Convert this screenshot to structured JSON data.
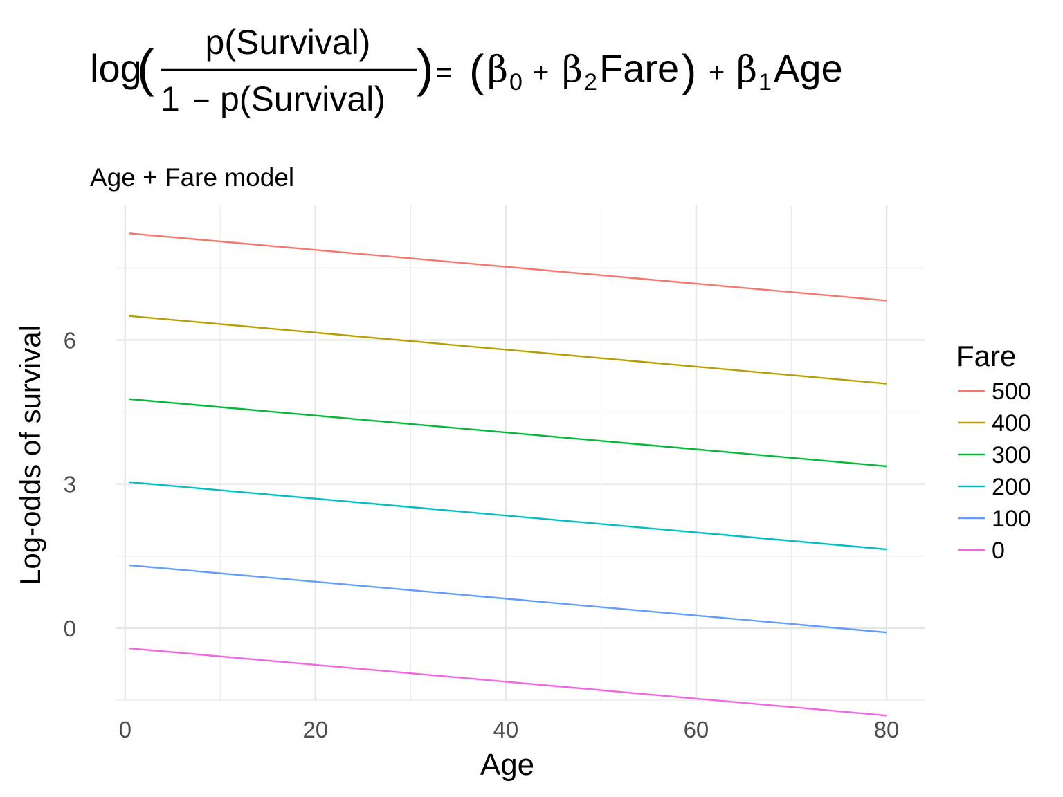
{
  "chart_data": {
    "type": "line",
    "title": {
      "log": "log",
      "numerator": "p(Survival)",
      "denominator_prefix": "1",
      "minus": "−",
      "denominator": "p(Survival)",
      "equals": "=",
      "beta": "β",
      "sub0": "0",
      "sub1": "1",
      "sub2": "2",
      "plus": "+",
      "fare_term": "Fare",
      "age_term": "Age"
    },
    "subtitle": "Age + Fare model",
    "xlabel": "Age",
    "ylabel": "Log-odds of survival",
    "xlim": [
      -1,
      84
    ],
    "ylim": [
      -1.5,
      8.8
    ],
    "x_ticks": [
      0,
      20,
      40,
      60,
      80
    ],
    "x_minor": [
      10,
      30,
      50,
      70
    ],
    "y_ticks": [
      0,
      3,
      6
    ],
    "y_minor": [
      -1.5,
      1.5,
      4.5,
      7.5
    ],
    "grid": true,
    "legend_position": "right",
    "legend_title": "Fare",
    "series": [
      {
        "name": "500",
        "color": "#F8766D",
        "x": [
          0.42,
          80
        ],
        "y": [
          8.22,
          6.82
        ]
      },
      {
        "name": "400",
        "color": "#B79F00",
        "x": [
          0.42,
          80
        ],
        "y": [
          6.5,
          5.09
        ]
      },
      {
        "name": "300",
        "color": "#00BA38",
        "x": [
          0.42,
          80
        ],
        "y": [
          4.77,
          3.37
        ]
      },
      {
        "name": "200",
        "color": "#00BFC4",
        "x": [
          0.42,
          80
        ],
        "y": [
          3.04,
          1.64
        ]
      },
      {
        "name": "100",
        "color": "#619CFF",
        "x": [
          0.42,
          80
        ],
        "y": [
          1.31,
          -0.09
        ]
      },
      {
        "name": "0",
        "color": "#F564E3",
        "x": [
          0.42,
          80
        ],
        "y": [
          -0.42,
          -1.82
        ]
      }
    ]
  }
}
